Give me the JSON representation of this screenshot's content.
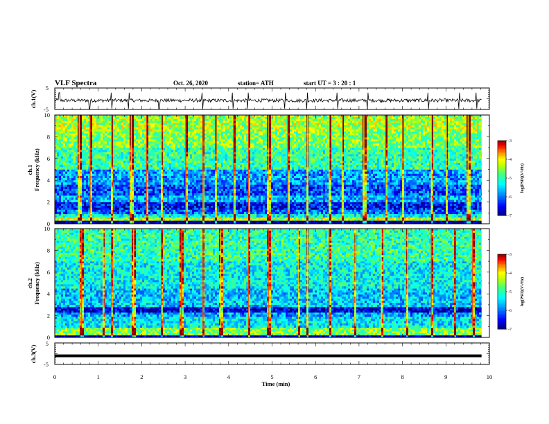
{
  "header": {
    "title": "VLF Spectra",
    "date": "Oct. 26, 2020",
    "station": "station= ATH",
    "start": "start  UT =   3 : 20 : 1"
  },
  "colors": {
    "background": "#ffffff",
    "waveform": "#000000",
    "colormap": [
      "#000080",
      "#0000ff",
      "#00a0ff",
      "#00ffff",
      "#40ff80",
      "#c0ff00",
      "#ffff00",
      "#ff8000",
      "#ff0000",
      "#800000",
      "#ffffff"
    ]
  },
  "chart_data": [
    {
      "type": "line",
      "panel": "ch1-waveform",
      "ylabel": "ch.1(V)",
      "ylim": [
        -5,
        5
      ],
      "yticks": [
        "5",
        "-5"
      ],
      "xlim": [
        0,
        10
      ],
      "baseline": -0.8,
      "amplitude": 0.8,
      "spikes_min": [
        0.1,
        0.8,
        1.3,
        1.7,
        2.4,
        3.4,
        4.1,
        4.45,
        5.3,
        5.8,
        6.5,
        7.2,
        8.6,
        9.3,
        9.7
      ]
    },
    {
      "type": "heatmap",
      "panel": "ch1-spectrogram",
      "ylabel_line1": "ch.1",
      "ylabel_line2": "Frequency  (kHz)",
      "ylim": [
        0,
        10
      ],
      "yticks": [
        "0",
        "2",
        "4",
        "6",
        "8",
        "10"
      ],
      "xlim": [
        0,
        10
      ],
      "colorbar": {
        "label": "log(PSD)(V²/Hz)",
        "range": [
          -7,
          -3
        ],
        "ticks": [
          "-3",
          "-4",
          "-5",
          "-6",
          "-7"
        ]
      },
      "bands_khz": [
        {
          "from": 0,
          "to": 0.3,
          "level": -7
        },
        {
          "from": 0.3,
          "to": 0.6,
          "level": -4.3
        },
        {
          "from": 0.6,
          "to": 0.9,
          "level": -5.3
        },
        {
          "from": 0.9,
          "to": 1.3,
          "level": -6.1
        },
        {
          "from": 1.3,
          "to": 2.0,
          "level": -6.5
        },
        {
          "from": 2.0,
          "to": 2.6,
          "level": -5.7
        },
        {
          "from": 2.6,
          "to": 3.6,
          "level": -6.2
        },
        {
          "from": 3.6,
          "to": 5.0,
          "level": -5.8
        },
        {
          "from": 5.0,
          "to": 7.0,
          "level": -5.0
        },
        {
          "from": 7.0,
          "to": 8.5,
          "level": -4.6
        },
        {
          "from": 8.5,
          "to": 10,
          "level": -4.4
        }
      ],
      "sferic_times_min": [
        0.55,
        0.8,
        1.3,
        1.75,
        2.1,
        2.45,
        3.0,
        3.4,
        3.7,
        4.1,
        4.45,
        4.9,
        5.35,
        5.8,
        6.3,
        6.6,
        7.1,
        7.6,
        8.0,
        8.65,
        9.0,
        9.5
      ]
    },
    {
      "type": "heatmap",
      "panel": "ch2-spectrogram",
      "ylabel_line1": "ch.2",
      "ylabel_line2": "Frequency  (kHz)",
      "ylim": [
        0,
        10
      ],
      "yticks": [
        "0",
        "2",
        "4",
        "6",
        "8",
        "10"
      ],
      "xlim": [
        0,
        10
      ],
      "colorbar": {
        "label": "log(PSD)(V²/Hz)",
        "range": [
          -7,
          -3
        ],
        "ticks": [
          "-3",
          "-4",
          "-5",
          "-6",
          "-7"
        ]
      },
      "bands_khz": [
        {
          "from": 0,
          "to": 0.2,
          "level": -7
        },
        {
          "from": 0.2,
          "to": 0.9,
          "level": -4.6
        },
        {
          "from": 0.9,
          "to": 1.9,
          "level": -5.4
        },
        {
          "from": 1.9,
          "to": 2.3,
          "level": -5.8
        },
        {
          "from": 2.3,
          "to": 2.8,
          "level": -6.7
        },
        {
          "from": 2.8,
          "to": 4.5,
          "level": -5.6
        },
        {
          "from": 4.5,
          "to": 7.0,
          "level": -5.3
        },
        {
          "from": 7.0,
          "to": 10,
          "level": -5.0
        }
      ],
      "sferic_times_min": [
        0.6,
        1.1,
        1.3,
        1.8,
        2.45,
        2.9,
        3.4,
        3.8,
        4.45,
        4.9,
        5.6,
        5.8,
        6.3,
        6.9,
        7.5,
        8.1,
        8.65,
        9.2,
        9.6
      ]
    },
    {
      "type": "line",
      "panel": "ch3-waveform",
      "ylabel": "ch.3(V)",
      "ylim": [
        -5,
        5
      ],
      "yticks": [
        "5",
        "-5"
      ],
      "xlim": [
        0,
        10
      ],
      "level": -1,
      "data_end_min": 9.82
    }
  ],
  "xaxis": {
    "label": "Time  (min)",
    "ticks": [
      "0",
      "1",
      "2",
      "3",
      "4",
      "5",
      "6",
      "7",
      "8",
      "9",
      "10"
    ],
    "range": [
      0,
      10
    ],
    "data_end_min": 9.82
  }
}
